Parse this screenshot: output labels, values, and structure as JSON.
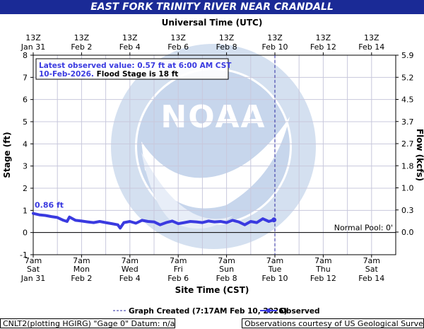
{
  "header": {
    "title": "EAST FORK TRINITY RIVER NEAR CRANDALL"
  },
  "colors": {
    "title_bg": "#1a2a96",
    "observed": "#3a3ae0",
    "grid": "#c8c8dc",
    "noaa_logo": "#c7d6ec"
  },
  "footer": {
    "left_text": "CNLT2(plotting HGIRG) \"Gage 0\" Datum: n/a",
    "right_text": "Observations courtesy of US Geological Survey"
  },
  "chart_data": {
    "type": "line",
    "top_axis_title": "Universal Time (UTC)",
    "xlabel": "Site Time (CST)",
    "ylabel": "Stage (ft)",
    "y2label": "Flow (kcfs)",
    "ylim": [
      -1,
      8
    ],
    "yticks": [
      "-1",
      "0",
      "1",
      "2",
      "3",
      "4",
      "5",
      "6",
      "7",
      "8"
    ],
    "y2ticks": [
      "0.0",
      "0.3",
      "1.0",
      "1.8",
      "2.7",
      "3.7",
      "4.5",
      "5.2",
      "5.9"
    ],
    "xlim_days": [
      0,
      15
    ],
    "x_ticks_bottom": [
      {
        "l1": "7am",
        "l2": "Sat",
        "l3": "Jan 31"
      },
      {
        "l1": "7am",
        "l2": "Mon",
        "l3": "Feb 2"
      },
      {
        "l1": "7am",
        "l2": "Wed",
        "l3": "Feb 4"
      },
      {
        "l1": "7am",
        "l2": "Fri",
        "l3": "Feb 6"
      },
      {
        "l1": "7am",
        "l2": "Sun",
        "l3": "Feb 8"
      },
      {
        "l1": "7am",
        "l2": "Tue",
        "l3": "Feb 10"
      },
      {
        "l1": "7am",
        "l2": "Thu",
        "l3": "Feb 12"
      },
      {
        "l1": "7am",
        "l2": "Sat",
        "l3": "Feb 14"
      }
    ],
    "x_ticks_top": [
      {
        "l1": "13Z",
        "l2": "Jan 31"
      },
      {
        "l1": "13Z",
        "l2": "Feb  2"
      },
      {
        "l1": "13Z",
        "l2": "Feb  4"
      },
      {
        "l1": "13Z",
        "l2": "Feb  6"
      },
      {
        "l1": "13Z",
        "l2": "Feb  8"
      },
      {
        "l1": "13Z",
        "l2": "Feb 10"
      },
      {
        "l1": "13Z",
        "l2": "Feb 12"
      },
      {
        "l1": "13Z",
        "l2": "Feb 14"
      }
    ],
    "info_box": {
      "line1": "Latest observed value: 0.57 ft at 6:00 AM CST",
      "line2_date": "10-Feb-2026.",
      "line2_rest": " Flood Stage is 18 ft"
    },
    "first_value_label": "0.86 ft",
    "normal_pool_label": "Normal Pool: 0'",
    "normal_pool": 0,
    "graph_created_day": 10,
    "legend": {
      "created": "Graph Created (7:17AM Feb 10, 2026)",
      "observed": "Observed"
    },
    "series": [
      {
        "name": "Observed",
        "x": [
          0,
          0.25,
          0.5,
          0.75,
          1.0,
          1.25,
          1.4,
          1.5,
          1.75,
          2.0,
          2.25,
          2.5,
          2.75,
          3.0,
          3.25,
          3.5,
          3.6,
          3.75,
          4.0,
          4.25,
          4.5,
          4.75,
          5.0,
          5.25,
          5.5,
          5.75,
          6.0,
          6.25,
          6.5,
          6.75,
          7.0,
          7.25,
          7.5,
          7.75,
          8.0,
          8.25,
          8.5,
          8.75,
          9.0,
          9.25,
          9.5,
          9.75,
          9.96
        ],
        "values": [
          0.86,
          0.8,
          0.77,
          0.72,
          0.68,
          0.55,
          0.5,
          0.7,
          0.55,
          0.52,
          0.48,
          0.45,
          0.5,
          0.45,
          0.4,
          0.35,
          0.2,
          0.45,
          0.5,
          0.42,
          0.55,
          0.5,
          0.48,
          0.35,
          0.45,
          0.52,
          0.4,
          0.45,
          0.5,
          0.48,
          0.45,
          0.52,
          0.48,
          0.5,
          0.45,
          0.55,
          0.48,
          0.35,
          0.5,
          0.45,
          0.62,
          0.5,
          0.57
        ]
      }
    ]
  }
}
